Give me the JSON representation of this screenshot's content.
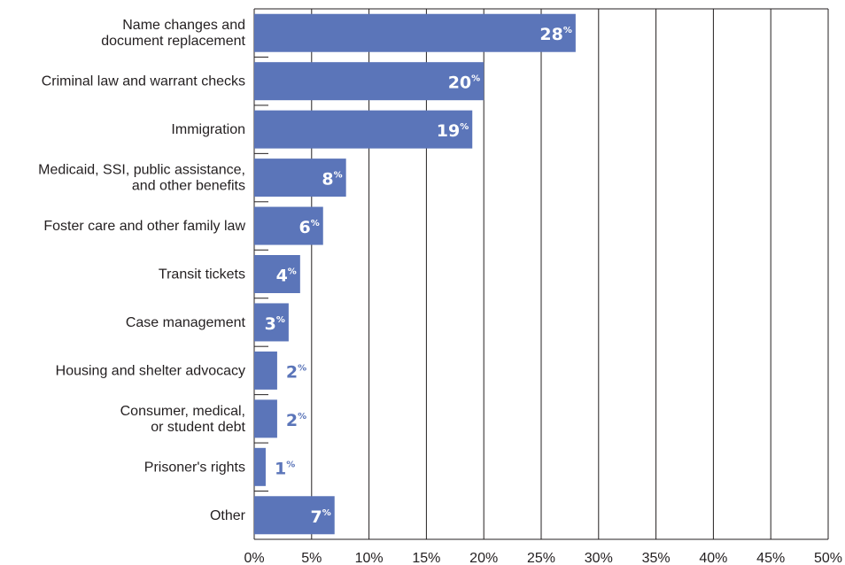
{
  "chart_data": {
    "type": "bar",
    "orientation": "horizontal",
    "categories": [
      [
        "Name changes and",
        "document replacement"
      ],
      [
        "Criminal law and warrant checks"
      ],
      [
        "Immigration"
      ],
      [
        "Medicaid, SSI, public assistance,",
        "and other benefits"
      ],
      [
        "Foster care and other family law"
      ],
      [
        "Transit tickets"
      ],
      [
        "Case management"
      ],
      [
        "Housing and shelter advocacy"
      ],
      [
        "Consumer, medical,",
        "or student debt"
      ],
      [
        "Prisoner's rights"
      ],
      [
        "Other"
      ]
    ],
    "values": [
      28,
      20,
      19,
      8,
      6,
      4,
      3,
      2,
      2,
      1,
      7
    ],
    "value_labels": [
      "28",
      "20",
      "19",
      "8",
      "6",
      "4",
      "3",
      "2",
      "2",
      "1",
      "7"
    ],
    "value_suffix": "%",
    "xlim": [
      0,
      50
    ],
    "xticks": [
      "0%",
      "5%",
      "10%",
      "15%",
      "20%",
      "25%",
      "30%",
      "35%",
      "40%",
      "45%",
      "50%"
    ],
    "tick_step": 5,
    "grid": true,
    "legend": false,
    "colors": {
      "bar": "#5b75b9",
      "label_inside": "#ffffff",
      "label_outside": "#5b75b9",
      "grid": "#231f20",
      "text": "#231f20"
    }
  }
}
